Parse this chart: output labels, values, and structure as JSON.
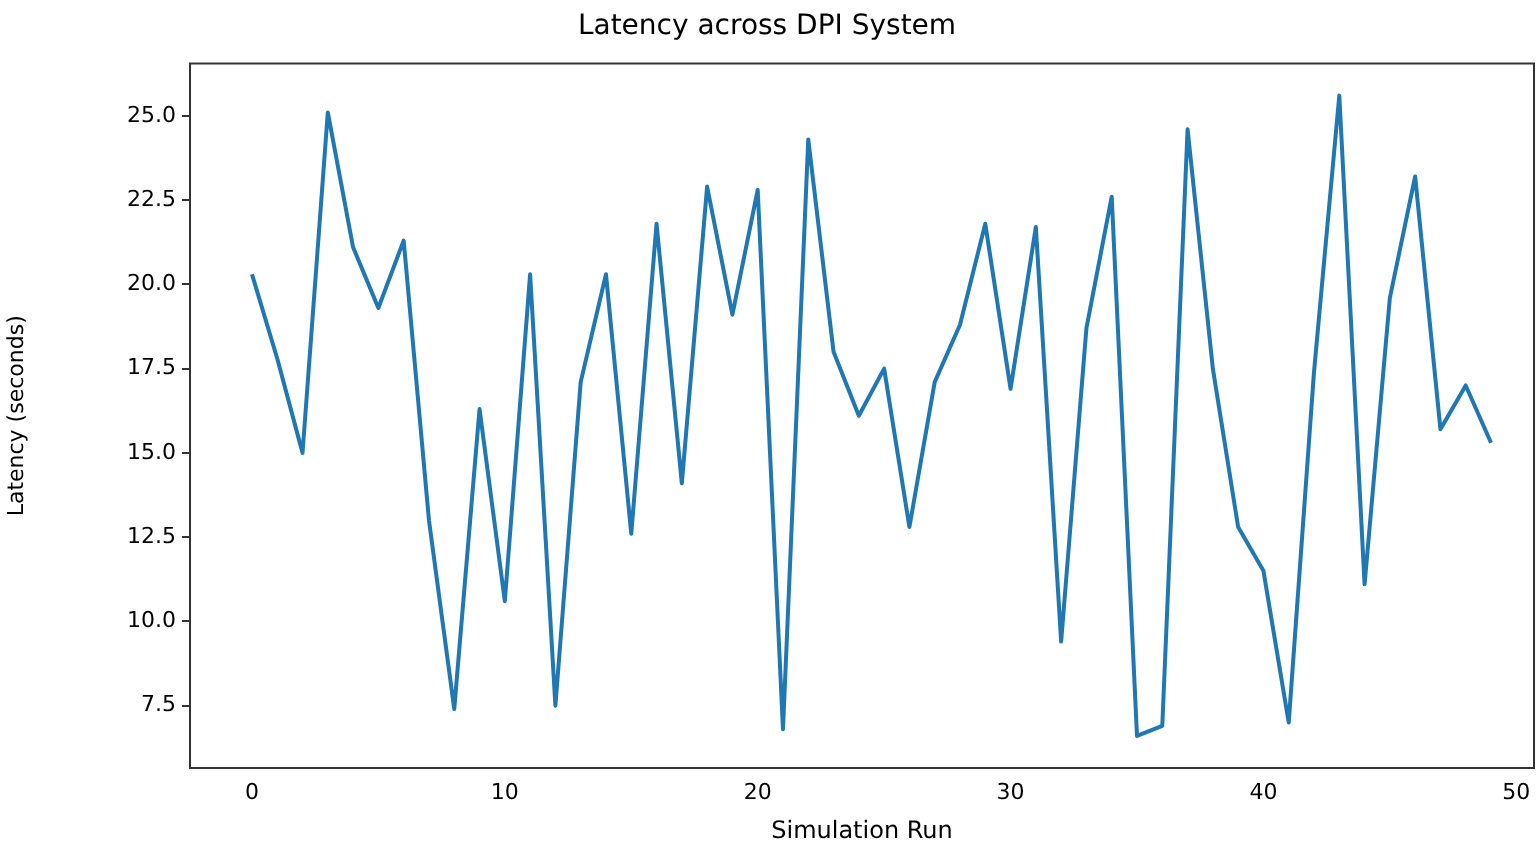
{
  "chart_data": {
    "type": "line",
    "title": "Latency across DPI System",
    "xlabel": "Simulation Run",
    "ylabel": "Latency (seconds)",
    "x": [
      0,
      1,
      2,
      3,
      4,
      5,
      6,
      7,
      8,
      9,
      10,
      11,
      12,
      13,
      14,
      15,
      16,
      17,
      18,
      19,
      20,
      21,
      22,
      23,
      24,
      25,
      26,
      27,
      28,
      29,
      30,
      31,
      32,
      33,
      34,
      35,
      36,
      37,
      38,
      39,
      40,
      41,
      42,
      43,
      44,
      45,
      46,
      47,
      48,
      49
    ],
    "series": [
      {
        "color": "#1f77b4",
        "values": [
          20.3,
          17.8,
          15.0,
          25.1,
          21.1,
          19.3,
          21.3,
          13.0,
          7.4,
          16.3,
          10.6,
          20.3,
          7.5,
          17.1,
          20.3,
          12.6,
          21.8,
          14.1,
          22.9,
          19.1,
          22.8,
          6.8,
          24.3,
          18.0,
          16.1,
          17.5,
          12.8,
          17.1,
          18.8,
          21.8,
          16.9,
          21.7,
          9.4,
          18.7,
          22.6,
          6.6,
          6.9,
          24.6,
          17.5,
          12.8,
          11.5,
          7.0,
          17.4,
          25.6,
          11.1,
          19.6,
          23.2,
          15.7,
          17.0,
          15.3
        ]
      }
    ],
    "xlim": [
      -2.45,
      50.7
    ],
    "xticks": [
      0,
      10,
      20,
      30,
      40,
      50
    ],
    "ylim": [
      5.65,
      26.55
    ],
    "yticks": [
      {
        "value": 7.5,
        "label": "7.5"
      },
      {
        "value": 10,
        "label": "10.0"
      },
      {
        "value": 12.5,
        "label": "12.5"
      },
      {
        "value": 15,
        "label": "15.0"
      },
      {
        "value": 17.5,
        "label": "17.5"
      },
      {
        "value": 20,
        "label": "20.0"
      },
      {
        "value": 22.5,
        "label": "22.5"
      },
      {
        "value": 25,
        "label": "25.0"
      }
    ],
    "grid": false,
    "legend": false,
    "marker": "none",
    "line_style": "solid"
  }
}
